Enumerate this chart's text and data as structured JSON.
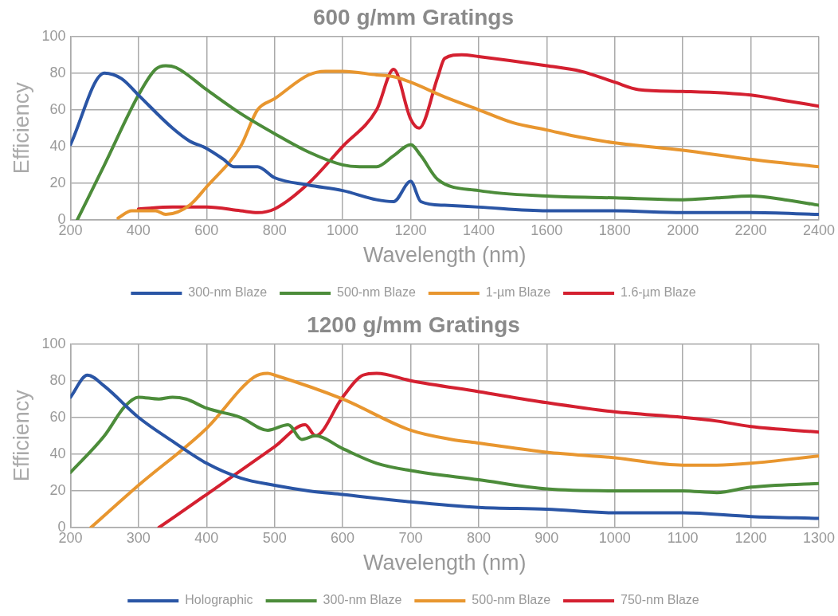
{
  "chart_data": [
    {
      "type": "line",
      "title": "600 g/mm Gratings",
      "xlabel": "Wavelength (nm)",
      "ylabel": "Efficiency",
      "xlim": [
        200,
        2400
      ],
      "xticks": [
        200,
        400,
        600,
        800,
        1000,
        1200,
        1400,
        1600,
        1800,
        2000,
        2200,
        2400
      ],
      "ylim": [
        0,
        100
      ],
      "yticks": [
        0,
        20,
        40,
        60,
        80,
        100
      ],
      "grid": true,
      "legend": "bottom",
      "marker": "none",
      "line_style": "solid",
      "series": [
        {
          "name": "300-nm Blaze",
          "color": "#2a55a5",
          "x": [
            200,
            300,
            350,
            400,
            500,
            550,
            600,
            650,
            680,
            750,
            800,
            900,
            1000,
            1100,
            1150,
            1200,
            1230,
            1300,
            1400,
            1600,
            1800,
            2000,
            2200,
            2400
          ],
          "values": [
            41,
            80,
            77,
            68,
            50,
            43,
            39,
            33,
            29,
            29,
            23,
            19,
            16,
            11,
            10,
            21,
            10,
            8,
            7,
            5,
            5,
            4,
            4,
            3
          ]
        },
        {
          "name": "500-nm Blaze",
          "color": "#4c8c3a",
          "x": [
            220,
            300,
            400,
            450,
            480,
            510,
            600,
            700,
            800,
            900,
            1000,
            1050,
            1100,
            1150,
            1200,
            1230,
            1280,
            1400,
            1600,
            1800,
            2000,
            2100,
            2200,
            2300,
            2400
          ],
          "values": [
            0,
            30,
            68,
            82,
            84,
            83,
            71,
            58,
            47,
            37,
            30,
            29,
            29,
            35,
            41,
            35,
            22,
            16,
            13,
            12,
            11,
            12,
            13,
            11,
            8
          ]
        },
        {
          "name": "1-µm Blaze",
          "color": "#e8962f",
          "x": [
            340,
            380,
            450,
            480,
            550,
            600,
            700,
            750,
            800,
            900,
            950,
            1000,
            1100,
            1150,
            1200,
            1300,
            1400,
            1500,
            1600,
            1700,
            1800,
            2000,
            2200,
            2400
          ],
          "values": [
            1,
            5,
            5,
            3,
            8,
            18,
            40,
            60,
            66,
            79,
            81,
            81,
            79,
            78,
            75,
            67,
            60,
            53,
            49,
            45,
            42,
            38,
            33,
            29
          ]
        },
        {
          "name": "1.6-µm Blaze",
          "color": "#d42030",
          "x": [
            400,
            500,
            600,
            700,
            750,
            800,
            900,
            1000,
            1100,
            1150,
            1200,
            1225,
            1280,
            1300,
            1350,
            1400,
            1600,
            1700,
            1800,
            1870,
            2000,
            2200,
            2300,
            2400
          ],
          "values": [
            6,
            7,
            7,
            5,
            4,
            6,
            20,
            40,
            60,
            82,
            55,
            50,
            78,
            88,
            90,
            89,
            84,
            81,
            75,
            71,
            70,
            68,
            65,
            62
          ]
        }
      ]
    },
    {
      "type": "line",
      "title": "1200 g/mm Gratings",
      "xlabel": "Wavelength (nm)",
      "ylabel": "Efficiency",
      "xlim": [
        200,
        1300
      ],
      "xticks": [
        200,
        300,
        400,
        500,
        600,
        700,
        800,
        900,
        1000,
        1100,
        1200,
        1300
      ],
      "ylim": [
        0,
        100
      ],
      "yticks": [
        0,
        20,
        40,
        60,
        80,
        100
      ],
      "grid": true,
      "legend": "bottom",
      "marker": "none",
      "line_style": "solid",
      "series": [
        {
          "name": "Holographic",
          "color": "#2a55a5",
          "x": [
            200,
            225,
            250,
            300,
            350,
            400,
            450,
            500,
            550,
            600,
            700,
            800,
            900,
            1000,
            1100,
            1200,
            1300
          ],
          "values": [
            71,
            83,
            77,
            60,
            47,
            35,
            27,
            23,
            20,
            18,
            14,
            11,
            10,
            8,
            8,
            6,
            5
          ]
        },
        {
          "name": "300-nm Blaze",
          "color": "#4c8c3a",
          "x": [
            200,
            250,
            280,
            300,
            330,
            350,
            370,
            400,
            450,
            490,
            520,
            540,
            560,
            600,
            650,
            700,
            800,
            900,
            1000,
            1100,
            1150,
            1200,
            1300
          ],
          "values": [
            30,
            50,
            66,
            71,
            70,
            71,
            70,
            65,
            60,
            53,
            56,
            48,
            50,
            43,
            35,
            31,
            26,
            21,
            20,
            20,
            19,
            22,
            24
          ]
        },
        {
          "name": "500-nm Blaze",
          "color": "#e8962f",
          "x": [
            230,
            300,
            400,
            470,
            490,
            500,
            600,
            700,
            760,
            800,
            900,
            1000,
            1100,
            1150,
            1200,
            1300
          ],
          "values": [
            0,
            23,
            54,
            82,
            84,
            83,
            70,
            53,
            48,
            46,
            41,
            38,
            34,
            34,
            35,
            39
          ]
        },
        {
          "name": "750-nm Blaze",
          "color": "#d42030",
          "x": [
            330,
            400,
            500,
            545,
            560,
            600,
            630,
            650,
            700,
            800,
            900,
            1000,
            1100,
            1150,
            1200,
            1300
          ],
          "values": [
            0,
            18,
            44,
            56,
            50,
            71,
            83,
            84,
            80,
            74,
            68,
            63,
            60,
            58,
            55,
            52
          ]
        }
      ]
    }
  ]
}
